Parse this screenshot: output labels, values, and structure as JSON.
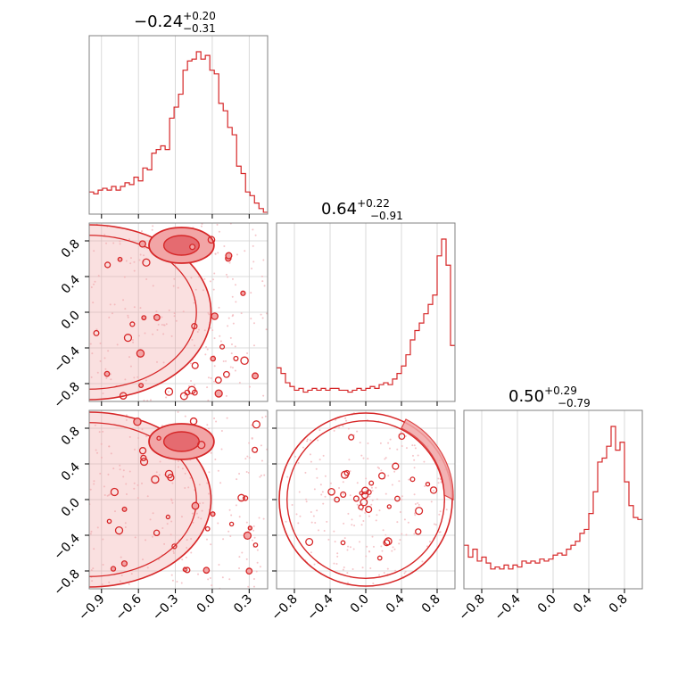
{
  "chart_data": {
    "type": "corner",
    "color": "#d62728",
    "fill_color": "#f2a5a6",
    "grid": true,
    "panels": [
      {
        "id": "p00",
        "kind": "histogram",
        "row": 0,
        "col": 0,
        "title": {
          "median": "−0.24",
          "plus": "+0.20",
          "minus": "−0.31"
        },
        "xlim": [
          -1.0,
          0.45
        ],
        "x_ticks": [
          -0.9,
          -0.6,
          -0.3,
          0.0,
          0.3
        ],
        "bin_start": -1.0,
        "bin_width": 0.0363,
        "counts": [
          0.12,
          0.11,
          0.13,
          0.14,
          0.13,
          0.15,
          0.13,
          0.15,
          0.17,
          0.16,
          0.2,
          0.18,
          0.25,
          0.24,
          0.33,
          0.35,
          0.37,
          0.35,
          0.52,
          0.58,
          0.65,
          0.78,
          0.83,
          0.84,
          0.88,
          0.84,
          0.86,
          0.78,
          0.76,
          0.6,
          0.56,
          0.47,
          0.43,
          0.26,
          0.22,
          0.12,
          0.1,
          0.06,
          0.03,
          0.01
        ]
      },
      {
        "id": "p11",
        "kind": "histogram",
        "row": 1,
        "col": 1,
        "title": {
          "median": "0.64",
          "plus": "+0.22",
          "minus": "−0.91"
        },
        "xlim": [
          -1.0,
          1.0
        ],
        "x_ticks": [
          -0.8,
          -0.4,
          0.0,
          0.4,
          0.8
        ],
        "bin_start": -1.0,
        "bin_width": 0.05,
        "counts": [
          0.18,
          0.15,
          0.1,
          0.08,
          0.06,
          0.07,
          0.05,
          0.06,
          0.07,
          0.06,
          0.07,
          0.06,
          0.07,
          0.07,
          0.06,
          0.06,
          0.05,
          0.06,
          0.07,
          0.06,
          0.07,
          0.08,
          0.07,
          0.09,
          0.1,
          0.09,
          0.12,
          0.15,
          0.19,
          0.25,
          0.33,
          0.38,
          0.42,
          0.47,
          0.52,
          0.57,
          0.78,
          0.87,
          0.73,
          0.3
        ]
      },
      {
        "id": "p22",
        "kind": "histogram",
        "row": 2,
        "col": 2,
        "title": {
          "median": "0.50",
          "plus": "+0.29",
          "minus": "−0.79"
        },
        "xlim": [
          -1.0,
          1.0
        ],
        "x_ticks": [
          -0.8,
          -0.4,
          0.0,
          0.4,
          0.8
        ],
        "y_ticks": [
          -0.8,
          -0.4,
          0.0,
          0.4,
          0.8
        ],
        "bin_start": -1.0,
        "bin_width": 0.05,
        "counts": [
          0.22,
          0.16,
          0.2,
          0.14,
          0.16,
          0.13,
          0.1,
          0.11,
          0.1,
          0.12,
          0.1,
          0.12,
          0.11,
          0.14,
          0.13,
          0.14,
          0.13,
          0.15,
          0.14,
          0.15,
          0.17,
          0.18,
          0.17,
          0.2,
          0.22,
          0.24,
          0.28,
          0.3,
          0.38,
          0.49,
          0.64,
          0.66,
          0.72,
          0.82,
          0.7,
          0.74,
          0.54,
          0.42,
          0.36,
          0.35
        ]
      },
      {
        "id": "p10",
        "kind": "contour",
        "row": 1,
        "col": 0,
        "xlim": [
          -1.0,
          0.45
        ],
        "ylim": [
          -1.0,
          1.0
        ],
        "y_ticks": [
          -0.8,
          -0.4,
          0.0,
          0.4,
          0.8
        ],
        "hotspot": {
          "x": -0.25,
          "y": 0.75
        }
      },
      {
        "id": "p20",
        "kind": "contour",
        "row": 2,
        "col": 0,
        "xlim": [
          -1.0,
          0.45
        ],
        "ylim": [
          -1.0,
          1.0
        ],
        "x_ticks": [
          -0.9,
          -0.6,
          -0.3,
          0.0,
          0.3
        ],
        "y_ticks": [
          -0.8,
          -0.4,
          0.0,
          0.4,
          0.8
        ],
        "hotspot": {
          "x": -0.25,
          "y": 0.65
        }
      },
      {
        "id": "p21",
        "kind": "contour",
        "row": 2,
        "col": 1,
        "xlim": [
          -1.0,
          1.0
        ],
        "ylim": [
          -1.0,
          1.0
        ],
        "x_ticks": [
          -0.8,
          -0.4,
          0.0,
          0.4,
          0.8
        ],
        "ring": true
      }
    ]
  }
}
